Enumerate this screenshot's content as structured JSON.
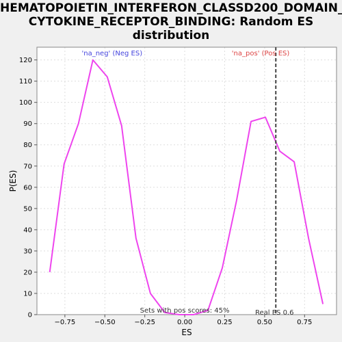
{
  "chart_data": {
    "type": "line",
    "title_lines": [
      "HEMATOPOIETIN_INTERFERON_CLASSD200_DOMAIN_",
      "CYTOKINE_RECEPTOR_BINDING: Random ES",
      "distribution"
    ],
    "xlabel": "ES",
    "ylabel": "P(ES)",
    "xlim": [
      -0.925,
      0.95
    ],
    "ylim": [
      0,
      126
    ],
    "x_ticks": [
      {
        "value": -0.75,
        "label": "−0.75"
      },
      {
        "value": -0.5,
        "label": "−0.50"
      },
      {
        "value": -0.25,
        "label": "−0.25"
      },
      {
        "value": 0.0,
        "label": "0.00"
      },
      {
        "value": 0.25,
        "label": "0.25"
      },
      {
        "value": 0.5,
        "label": "0.50"
      },
      {
        "value": 0.75,
        "label": "0.75"
      }
    ],
    "y_ticks": [
      0,
      10,
      20,
      30,
      40,
      50,
      60,
      70,
      80,
      90,
      100,
      110,
      120
    ],
    "grid": true,
    "series": [
      {
        "color": "#ee44ee",
        "x": [
          -0.845,
          -0.755,
          -0.665,
          -0.575,
          -0.485,
          -0.395,
          -0.305,
          -0.215,
          -0.125,
          -0.035,
          0.055,
          0.145,
          0.235,
          0.325,
          0.415,
          0.505,
          0.595,
          0.685,
          0.775,
          0.865
        ],
        "y": [
          20,
          71,
          90,
          120,
          112,
          89,
          36,
          10,
          1,
          0,
          0,
          2,
          22,
          54,
          91,
          93,
          77,
          72,
          36,
          5
        ]
      }
    ],
    "real_es": {
      "value": 0.57,
      "color": "#444444",
      "label": "Real ES 0.6"
    },
    "annotations": {
      "neg": {
        "text": "'na_neg' (Neg ES)",
        "color": "#4444dd",
        "x": -0.455
      },
      "pos": {
        "text": "'na_pos' (Pos ES)",
        "color": "#dd4444",
        "x": 0.475
      },
      "pos_scores": {
        "text": "Sets with pos scores: 45%",
        "x": 0.0
      }
    }
  }
}
